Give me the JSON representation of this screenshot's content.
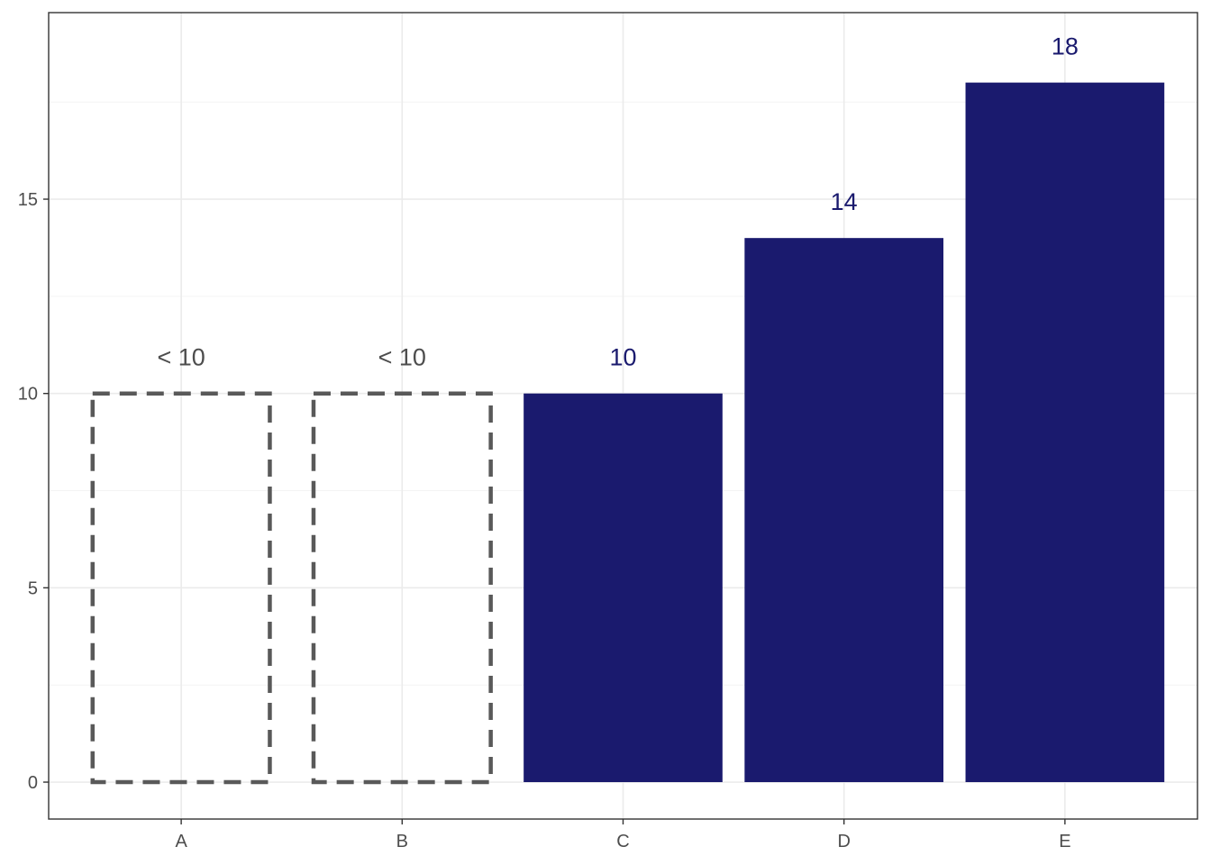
{
  "chart_data": {
    "type": "bar",
    "title": "",
    "xlabel": "",
    "ylabel": "",
    "categories": [
      "A",
      "B",
      "C",
      "D",
      "E"
    ],
    "values": [
      10,
      10,
      10,
      14,
      18
    ],
    "bar_labels": [
      "< 10",
      "< 10",
      "10",
      "14",
      "18"
    ],
    "bar_styles": [
      "suppressed-dashed",
      "suppressed-dashed",
      "filled",
      "filled",
      "filled"
    ],
    "ylim": [
      -0.95,
      19.8
    ],
    "y_ticks": [
      0,
      5,
      10,
      15
    ],
    "y_tick_labels": [
      "0",
      "5",
      "10",
      "15"
    ],
    "grid": true,
    "colors": {
      "filled_bar": "#1a1a6e",
      "suppressed_outline": "#595959",
      "suppressed_label": "#4d4d4d",
      "value_label": "#1a1a6e",
      "grid_major": "#ebebeb",
      "grid_minor": "#f4f4f4",
      "panel_border": "#333333"
    }
  }
}
